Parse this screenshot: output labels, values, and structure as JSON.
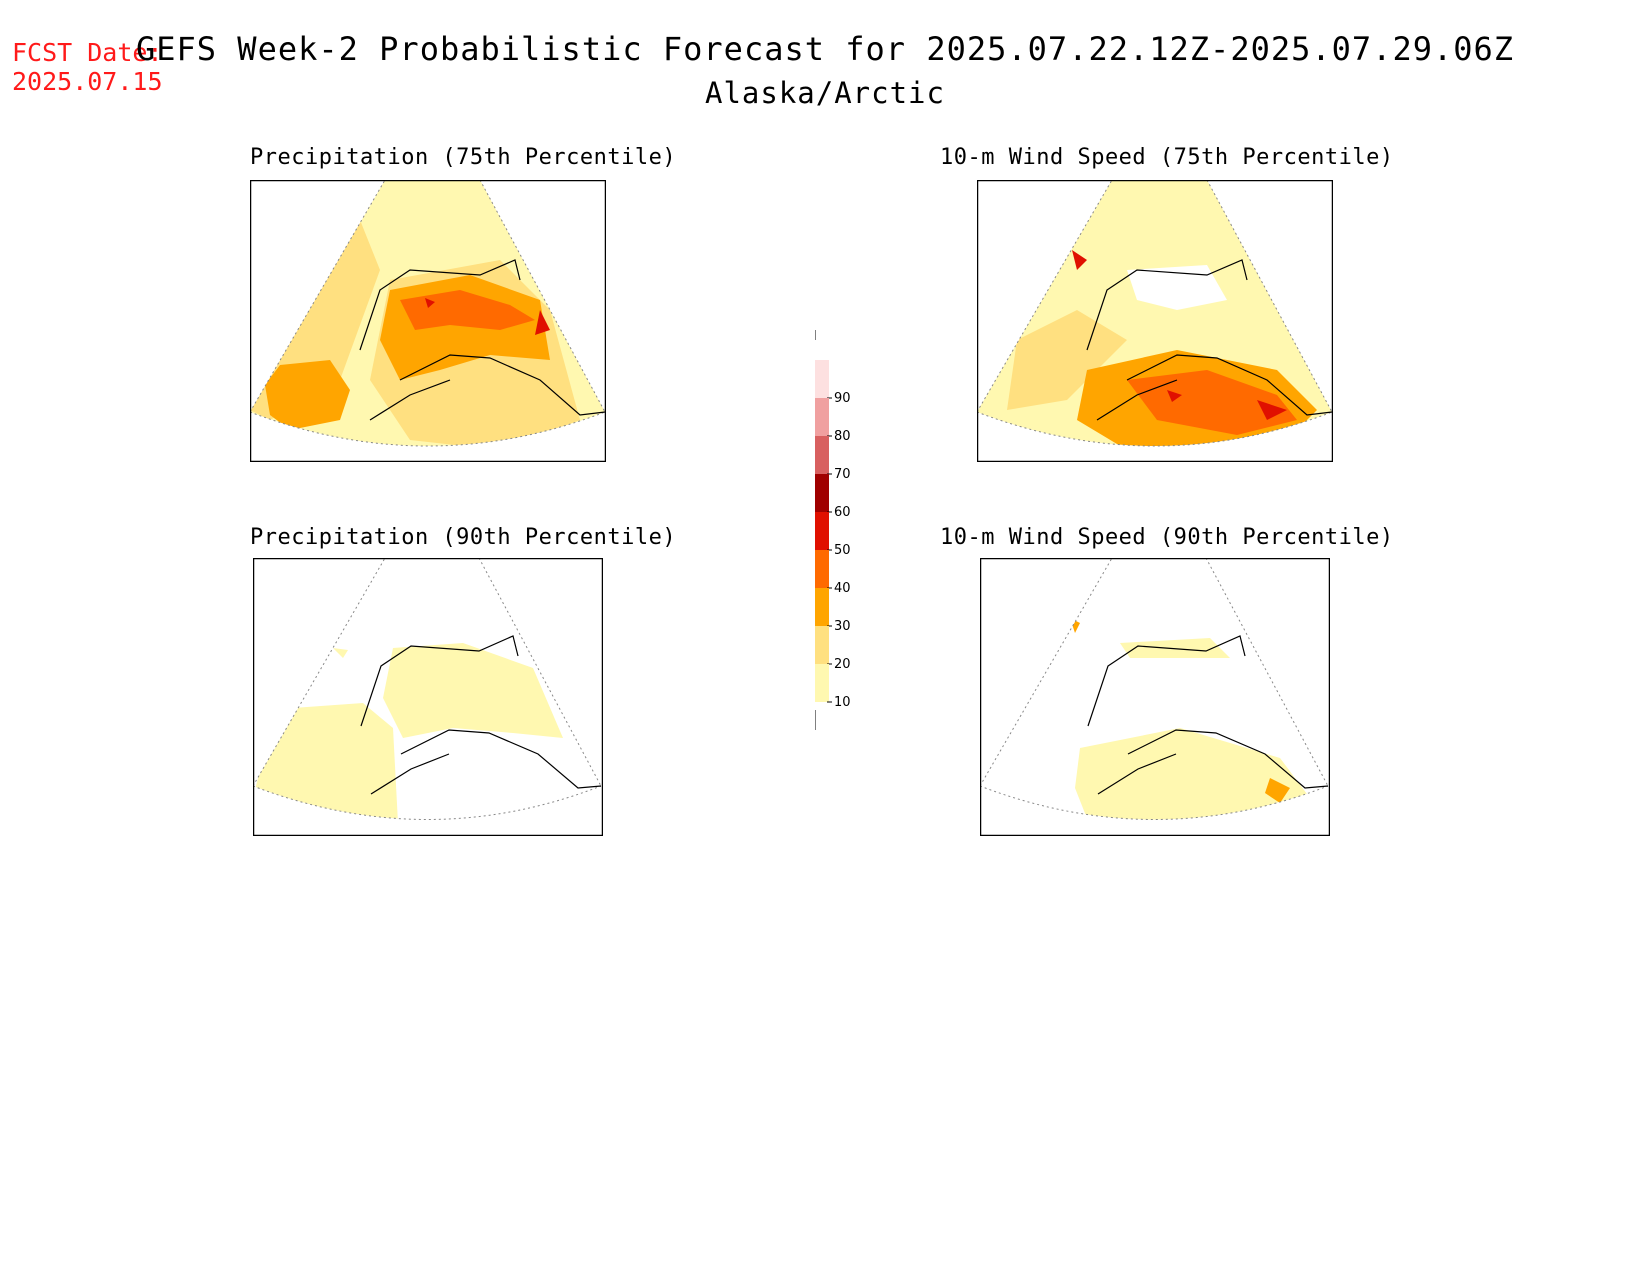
{
  "header": {
    "fcst_label": "FCST Date:",
    "fcst_date": "2025.07.15",
    "title": "GEFS Week-2 Probabilistic Forecast for 2025.07.22.12Z-2025.07.29.06Z",
    "subtitle": "Alaska/Arctic"
  },
  "panels": [
    {
      "title": "Precipitation (75th Percentile)"
    },
    {
      "title": "10-m Wind Speed (75th Percentile)"
    },
    {
      "title": "Precipitation (90th Percentile)"
    },
    {
      "title": "10-m Wind Speed (90th Percentile)"
    }
  ],
  "legend": {
    "labels": [
      "90",
      "80",
      "70",
      "60",
      "50",
      "40",
      "30",
      "20",
      "10"
    ],
    "colors": [
      "#fde0e0",
      "#f0a0a0",
      "#d86060",
      "#a00000",
      "#e01000",
      "#ff6a00",
      "#ffa500",
      "#ffe080",
      "#fff8b0"
    ]
  }
}
